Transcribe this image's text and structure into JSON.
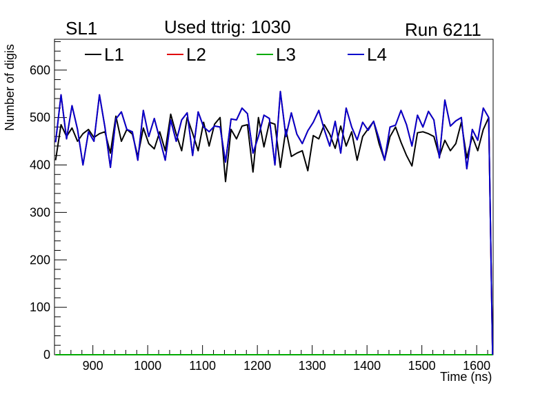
{
  "header": {
    "label": "SL1",
    "title": "Used ttrig: 1030",
    "run": "Run 6211"
  },
  "chart_data": {
    "type": "line",
    "title": "Used ttrig: 1030",
    "xlabel": "Time (ns)",
    "ylabel": "Number of digis",
    "xlim": [
      830,
      1630
    ],
    "ylim": [
      0,
      665
    ],
    "xticks": [
      900,
      1000,
      1100,
      1200,
      1300,
      1400,
      1500,
      1600
    ],
    "yticks": [
      0,
      100,
      200,
      300,
      400,
      500,
      600
    ],
    "grid": false,
    "legend_position": "top",
    "series": [
      {
        "name": "L1",
        "color": "#000000",
        "x": [
          832,
          842,
          852,
          862,
          872,
          882,
          892,
          902,
          912,
          922,
          932,
          942,
          952,
          962,
          972,
          982,
          992,
          1002,
          1012,
          1022,
          1032,
          1042,
          1052,
          1062,
          1072,
          1082,
          1092,
          1102,
          1112,
          1122,
          1132,
          1142,
          1152,
          1162,
          1172,
          1182,
          1192,
          1202,
          1212,
          1222,
          1232,
          1242,
          1252,
          1262,
          1272,
          1282,
          1292,
          1302,
          1312,
          1322,
          1332,
          1342,
          1352,
          1362,
          1372,
          1382,
          1392,
          1402,
          1412,
          1422,
          1432,
          1442,
          1452,
          1462,
          1472,
          1482,
          1492,
          1502,
          1512,
          1522,
          1532,
          1542,
          1552,
          1562,
          1572,
          1582,
          1592,
          1602,
          1612,
          1622,
          1629
        ],
        "values": [
          410,
          485,
          460,
          478,
          450,
          466,
          475,
          458,
          466,
          470,
          425,
          503,
          450,
          475,
          465,
          418,
          478,
          445,
          434,
          470,
          430,
          507,
          465,
          430,
          500,
          467,
          430,
          490,
          440,
          486,
          500,
          365,
          475,
          455,
          482,
          485,
          385,
          500,
          438,
          490,
          486,
          395,
          475,
          418,
          425,
          430,
          388,
          462,
          455,
          485,
          465,
          435,
          482,
          440,
          470,
          410,
          460,
          476,
          492,
          445,
          410,
          460,
          480,
          448,
          420,
          398,
          468,
          470,
          466,
          460,
          418,
          452,
          430,
          445,
          490,
          415,
          460,
          430,
          475,
          500,
          0
        ]
      },
      {
        "name": "L2",
        "color": "#e0000a",
        "x": [
          832,
          842,
          852,
          862,
          872,
          882,
          892,
          902,
          912,
          922,
          932,
          942,
          952,
          962,
          972,
          982,
          992,
          1002,
          1012,
          1022,
          1032,
          1042,
          1052,
          1062,
          1072,
          1082,
          1092,
          1102,
          1112,
          1122,
          1132,
          1142,
          1152,
          1162,
          1172,
          1182,
          1192,
          1202,
          1212,
          1222,
          1232,
          1242,
          1252,
          1262,
          1272,
          1282,
          1292,
          1302,
          1312,
          1322,
          1332,
          1342,
          1352,
          1362,
          1372,
          1382,
          1392,
          1402,
          1412,
          1422,
          1432,
          1442,
          1452,
          1462,
          1472,
          1482,
          1492,
          1502,
          1512,
          1522,
          1532,
          1542,
          1552,
          1562,
          1572,
          1582,
          1592,
          1602,
          1612,
          1622,
          1629
        ],
        "values": [
          448,
          548,
          455,
          525,
          475,
          400,
          470,
          450,
          548,
          480,
          395,
          497,
          512,
          475,
          470,
          410,
          515,
          460,
          498,
          455,
          410,
          495,
          450,
          495,
          510,
          420,
          512,
          480,
          470,
          482,
          480,
          406,
          497,
          495,
          520,
          508,
          425,
          460,
          505,
          498,
          400,
          555,
          460,
          510,
          465,
          445,
          472,
          490,
          515,
          475,
          440,
          492,
          425,
          520,
          480,
          453,
          490,
          473,
          492,
          455,
          410,
          480,
          484,
          515,
          485,
          440,
          505,
          480,
          513,
          495,
          415,
          537,
          482,
          493,
          500,
          392,
          475,
          452,
          520,
          500,
          0
        ]
      },
      {
        "name": "L3",
        "color": "#00aa00",
        "x": [
          832,
          1629
        ],
        "values": [
          0,
          0
        ]
      },
      {
        "name": "L4",
        "color": "#0000cc",
        "x": [
          832,
          842,
          852,
          862,
          872,
          882,
          892,
          902,
          912,
          922,
          932,
          942,
          952,
          962,
          972,
          982,
          992,
          1002,
          1012,
          1022,
          1032,
          1042,
          1052,
          1062,
          1072,
          1082,
          1092,
          1102,
          1112,
          1122,
          1132,
          1142,
          1152,
          1162,
          1172,
          1182,
          1192,
          1202,
          1212,
          1222,
          1232,
          1242,
          1252,
          1262,
          1272,
          1282,
          1292,
          1302,
          1312,
          1322,
          1332,
          1342,
          1352,
          1362,
          1372,
          1382,
          1392,
          1402,
          1412,
          1422,
          1432,
          1442,
          1452,
          1462,
          1472,
          1482,
          1492,
          1502,
          1512,
          1522,
          1532,
          1542,
          1552,
          1562,
          1572,
          1582,
          1592,
          1602,
          1612,
          1622,
          1629
        ],
        "values": [
          448,
          548,
          455,
          525,
          475,
          400,
          470,
          450,
          548,
          480,
          395,
          497,
          512,
          475,
          470,
          410,
          515,
          460,
          498,
          455,
          410,
          495,
          450,
          495,
          510,
          420,
          512,
          480,
          470,
          482,
          480,
          406,
          497,
          495,
          520,
          508,
          425,
          460,
          505,
          498,
          400,
          555,
          460,
          510,
          465,
          445,
          472,
          490,
          515,
          475,
          440,
          492,
          425,
          520,
          480,
          453,
          490,
          473,
          492,
          455,
          410,
          480,
          484,
          515,
          485,
          440,
          505,
          480,
          513,
          495,
          415,
          537,
          482,
          493,
          500,
          392,
          475,
          452,
          520,
          500,
          0
        ]
      }
    ]
  }
}
